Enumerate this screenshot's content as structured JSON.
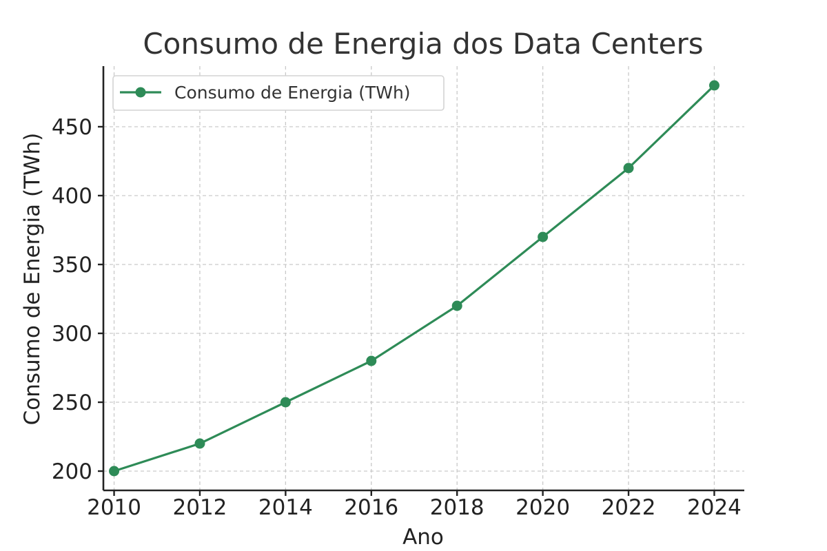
{
  "chart_data": {
    "type": "line",
    "title": "Consumo de Energia dos Data Centers",
    "xlabel": "Ano",
    "ylabel": "Consumo de Energia (TWh)",
    "x": [
      2010,
      2012,
      2014,
      2016,
      2018,
      2020,
      2022,
      2024
    ],
    "series": [
      {
        "name": "Consumo de Energia (TWh)",
        "values": [
          200,
          220,
          250,
          280,
          320,
          370,
          420,
          480
        ],
        "color": "#2e8b57",
        "marker": "circle"
      }
    ],
    "x_ticks": [
      2010,
      2012,
      2014,
      2016,
      2018,
      2020,
      2022,
      2024
    ],
    "y_ticks": [
      200,
      250,
      300,
      350,
      400,
      450
    ],
    "xlim": [
      2009.75,
      2024.7
    ],
    "ylim": [
      186,
      494
    ],
    "grid": true,
    "legend_position": "top-left"
  }
}
